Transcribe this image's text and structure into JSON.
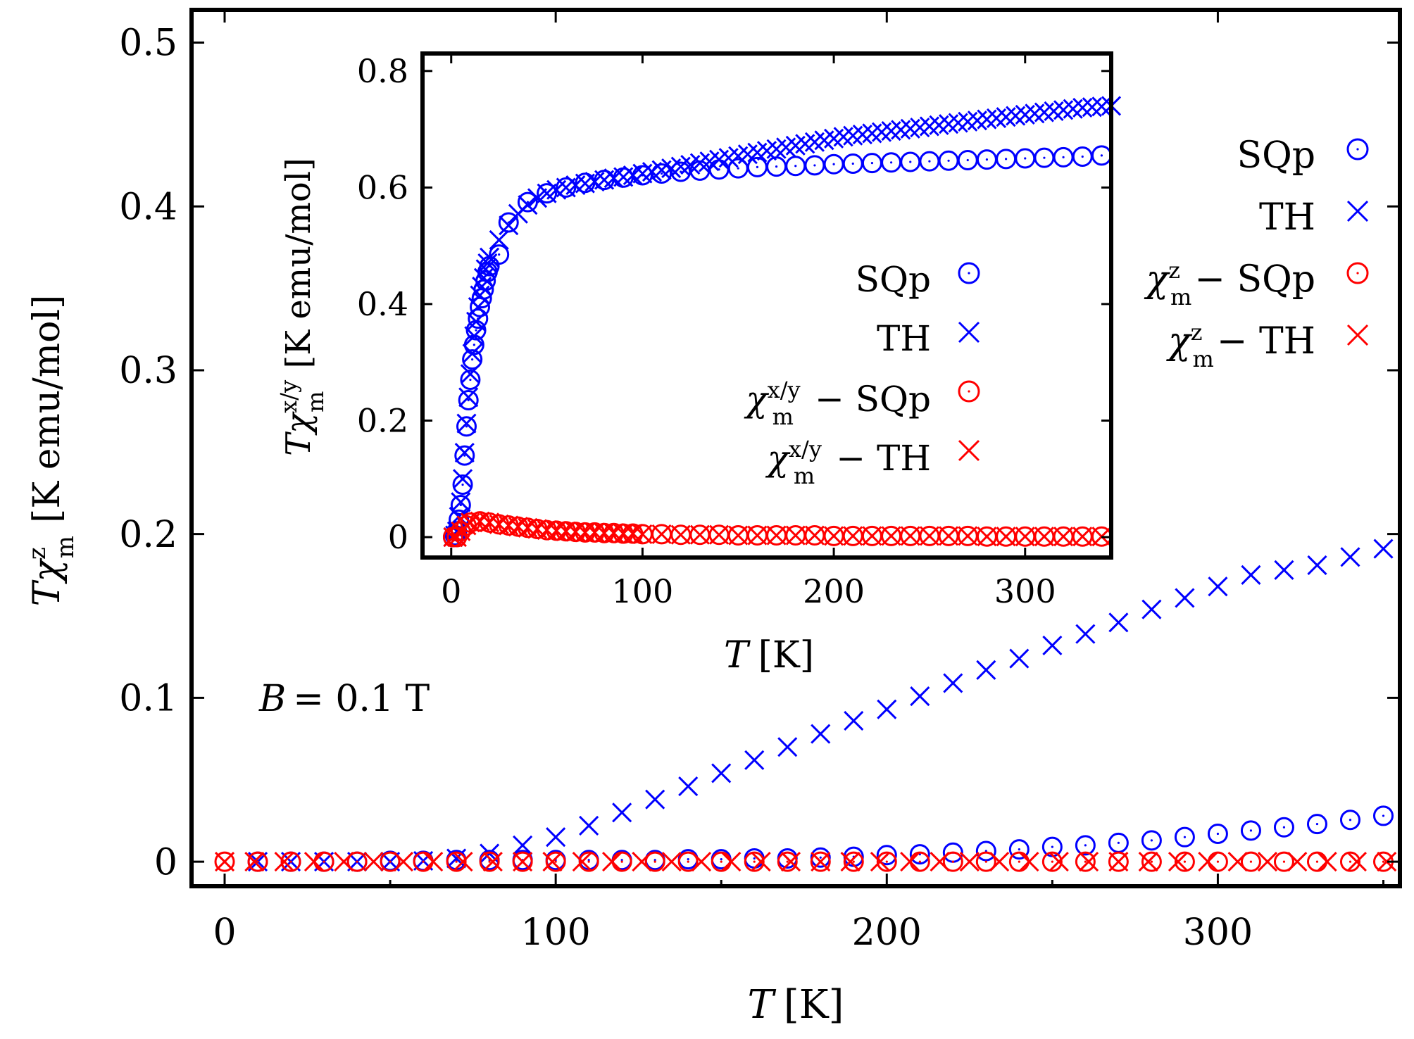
{
  "chart_data": [
    {
      "id": "main",
      "type": "scatter",
      "title": "",
      "xlabel": {
        "symbol": "T",
        "unit": "[K]"
      },
      "ylabel": {
        "symbol": "Tχ",
        "sup": "z",
        "sub": "m",
        "unit": "[K emu/mol]"
      },
      "xlim": [
        -10,
        355
      ],
      "ylim": [
        -0.015,
        0.52
      ],
      "xticks": [
        0,
        100,
        200,
        300
      ],
      "yticks": [
        0,
        0.1,
        0.2,
        0.3,
        0.4,
        0.5
      ],
      "xtick_labels": [
        "0",
        "100",
        "200",
        "300"
      ],
      "ytick_labels": [
        "0",
        "0.1",
        "0.2",
        "0.3",
        "0.4",
        "0.5"
      ],
      "annotation": {
        "symbol": "B",
        "text": "= 0.1 T"
      },
      "legend_position": "right",
      "series": [
        {
          "name": "SQp",
          "label": "SQp",
          "marker": "circle",
          "color": "#0000ff",
          "x": [
            10,
            20,
            30,
            40,
            50,
            60,
            70,
            80,
            90,
            100,
            110,
            120,
            130,
            140,
            150,
            160,
            170,
            180,
            190,
            200,
            210,
            220,
            230,
            240,
            250,
            260,
            270,
            280,
            290,
            300,
            310,
            320,
            330,
            340,
            350
          ],
          "y": [
            0,
            0,
            0,
            0,
            0.0005,
            0.0005,
            0.001,
            0.001,
            0.001,
            0.001,
            0.001,
            0.001,
            0.001,
            0.0015,
            0.0015,
            0.002,
            0.002,
            0.0025,
            0.003,
            0.004,
            0.0045,
            0.0055,
            0.0065,
            0.0075,
            0.009,
            0.01,
            0.0115,
            0.013,
            0.015,
            0.017,
            0.019,
            0.021,
            0.023,
            0.0255,
            0.028
          ]
        },
        {
          "name": "TH",
          "label": "TH",
          "marker": "cross",
          "color": "#0000ff",
          "x": [
            10,
            20,
            30,
            40,
            50,
            60,
            70,
            80,
            90,
            100,
            110,
            120,
            130,
            140,
            150,
            160,
            170,
            180,
            190,
            200,
            210,
            220,
            230,
            240,
            250,
            260,
            270,
            280,
            290,
            300,
            310,
            320,
            330,
            340,
            350
          ],
          "y": [
            0,
            0,
            0,
            0,
            0,
            0.0005,
            0.002,
            0.005,
            0.01,
            0.015,
            0.022,
            0.03,
            0.038,
            0.046,
            0.054,
            0.062,
            0.07,
            0.078,
            0.086,
            0.093,
            0.101,
            0.109,
            0.117,
            0.124,
            0.132,
            0.139,
            0.146,
            0.154,
            0.161,
            0.168,
            0.175,
            0.178,
            0.181,
            0.186,
            0.191
          ]
        },
        {
          "name": "chi_z_SQp",
          "label": "− SQp",
          "marker": "circle",
          "color": "#ff0000",
          "x": [
            0,
            10,
            20,
            30,
            40,
            50,
            60,
            70,
            80,
            90,
            100,
            110,
            120,
            130,
            140,
            150,
            160,
            170,
            180,
            190,
            200,
            210,
            220,
            230,
            240,
            250,
            260,
            270,
            280,
            290,
            300,
            310,
            320,
            330,
            340,
            350
          ],
          "y": [
            0,
            0,
            0,
            0,
            0,
            0,
            0,
            0,
            0,
            0,
            0,
            0,
            0,
            0,
            0,
            0,
            0,
            0,
            0,
            0,
            0,
            0,
            0,
            0,
            0,
            0,
            0,
            0,
            0,
            0,
            0,
            0,
            0,
            0,
            0,
            0
          ]
        },
        {
          "name": "chi_z_TH",
          "label": "− TH",
          "marker": "cross",
          "color": "#ff0000",
          "x": [
            0,
            9,
            18,
            27,
            36,
            45,
            54,
            63,
            72,
            81,
            90,
            99,
            108,
            117,
            126,
            135,
            144,
            153,
            162,
            171,
            180,
            189,
            198,
            207,
            216,
            225,
            234,
            243,
            252,
            261,
            270,
            279,
            288,
            297,
            306,
            315,
            324,
            333,
            342,
            351
          ],
          "y": [
            0,
            0,
            0,
            0,
            0,
            0,
            0,
            0,
            0,
            0,
            0,
            0,
            0,
            0,
            0,
            0,
            0,
            0,
            0,
            0,
            0,
            0,
            0,
            0,
            0,
            0,
            0,
            0,
            0,
            0,
            0,
            0,
            0,
            0,
            0,
            0,
            0,
            0,
            0,
            0
          ]
        }
      ],
      "legend_chi_labels": {
        "symbol": "χ",
        "sup": "z",
        "sub": "m"
      }
    },
    {
      "id": "inset",
      "type": "scatter",
      "title": "",
      "xlabel": {
        "symbol": "T",
        "unit": "[K]"
      },
      "ylabel": {
        "symbol": "Tχ",
        "sup": "x/y",
        "sub": "m",
        "unit": "[K emu/mol]"
      },
      "xlim": [
        -15,
        345
      ],
      "ylim": [
        -0.035,
        0.83
      ],
      "xticks": [
        0,
        100,
        200,
        300
      ],
      "yticks": [
        0,
        0.2,
        0.4,
        0.6,
        0.8
      ],
      "xtick_labels": [
        "0",
        "100",
        "200",
        "300"
      ],
      "ytick_labels": [
        "0",
        "0.2",
        "0.4",
        "0.6",
        "0.8"
      ],
      "legend_position": "lower-right",
      "series": [
        {
          "name": "SQp",
          "label": "SQp",
          "marker": "circle",
          "color": "#0000ff",
          "x": [
            1,
            2,
            3,
            4,
            5,
            6,
            7,
            8,
            9,
            10,
            11,
            12,
            13,
            14,
            15,
            16,
            17,
            18,
            19,
            20,
            25,
            30,
            40,
            50,
            60,
            70,
            80,
            90,
            100,
            110,
            120,
            130,
            140,
            150,
            160,
            170,
            180,
            190,
            200,
            210,
            220,
            230,
            240,
            250,
            260,
            270,
            280,
            290,
            300,
            310,
            320,
            330,
            340
          ],
          "y": [
            0,
            0.003,
            0.01,
            0.03,
            0.055,
            0.09,
            0.14,
            0.19,
            0.235,
            0.27,
            0.305,
            0.33,
            0.355,
            0.375,
            0.395,
            0.41,
            0.425,
            0.44,
            0.455,
            0.465,
            0.485,
            0.54,
            0.575,
            0.59,
            0.6,
            0.608,
            0.613,
            0.617,
            0.621,
            0.624,
            0.627,
            0.629,
            0.631,
            0.633,
            0.635,
            0.636,
            0.637,
            0.638,
            0.64,
            0.641,
            0.642,
            0.643,
            0.644,
            0.645,
            0.646,
            0.647,
            0.648,
            0.649,
            0.65,
            0.651,
            0.652,
            0.653,
            0.655
          ]
        },
        {
          "name": "TH",
          "label": "TH",
          "marker": "cross",
          "color": "#0000ff",
          "x": [
            1,
            2,
            3,
            4,
            5,
            6,
            7,
            8,
            9,
            10,
            11,
            12,
            13,
            14,
            15,
            16,
            17,
            18,
            19,
            20,
            25,
            30,
            35,
            40,
            45,
            50,
            55,
            60,
            65,
            70,
            75,
            80,
            85,
            90,
            95,
            100,
            105,
            110,
            115,
            120,
            125,
            130,
            135,
            140,
            145,
            150,
            155,
            160,
            165,
            170,
            175,
            180,
            185,
            190,
            195,
            200,
            205,
            210,
            215,
            220,
            225,
            230,
            235,
            240,
            245,
            250,
            255,
            260,
            265,
            270,
            275,
            280,
            285,
            290,
            295,
            300,
            305,
            310,
            315,
            320,
            325,
            330,
            335,
            340,
            345
          ],
          "y": [
            0,
            0.003,
            0.01,
            0.035,
            0.06,
            0.1,
            0.145,
            0.195,
            0.24,
            0.28,
            0.315,
            0.345,
            0.37,
            0.395,
            0.415,
            0.43,
            0.445,
            0.46,
            0.47,
            0.48,
            0.51,
            0.535,
            0.555,
            0.57,
            0.582,
            0.59,
            0.596,
            0.6,
            0.604,
            0.607,
            0.61,
            0.613,
            0.616,
            0.618,
            0.621,
            0.624,
            0.627,
            0.63,
            0.633,
            0.636,
            0.639,
            0.642,
            0.645,
            0.648,
            0.651,
            0.654,
            0.657,
            0.66,
            0.663,
            0.666,
            0.669,
            0.672,
            0.675,
            0.678,
            0.681,
            0.684,
            0.687,
            0.689,
            0.691,
            0.693,
            0.695,
            0.697,
            0.699,
            0.701,
            0.703,
            0.705,
            0.707,
            0.709,
            0.711,
            0.713,
            0.715,
            0.717,
            0.719,
            0.721,
            0.723,
            0.725,
            0.727,
            0.729,
            0.731,
            0.733,
            0.735,
            0.737,
            0.738,
            0.739,
            0.74
          ]
        },
        {
          "name": "chi_xy_SQp",
          "label": "− SQp",
          "marker": "circle",
          "color": "#ff0000",
          "x": [
            1,
            3,
            5,
            8,
            10,
            15,
            20,
            25,
            30,
            35,
            40,
            45,
            50,
            55,
            60,
            65,
            70,
            75,
            80,
            85,
            90,
            95,
            100,
            110,
            120,
            130,
            140,
            150,
            160,
            170,
            180,
            190,
            200,
            210,
            220,
            230,
            240,
            250,
            260,
            270,
            280,
            290,
            300,
            310,
            320,
            330,
            340
          ],
          "y": [
            0,
            0,
            0.01,
            0.02,
            0.025,
            0.027,
            0.025,
            0.022,
            0.02,
            0.018,
            0.016,
            0.014,
            0.012,
            0.011,
            0.01,
            0.009,
            0.008,
            0.008,
            0.007,
            0.007,
            0.006,
            0.006,
            0.005,
            0.005,
            0.004,
            0.004,
            0.004,
            0.003,
            0.003,
            0.003,
            0.003,
            0.003,
            0.002,
            0.002,
            0.002,
            0.002,
            0.002,
            0.002,
            0.002,
            0.002,
            0.001,
            0.001,
            0.001,
            0.001,
            0.001,
            0.001,
            0.001
          ]
        },
        {
          "name": "chi_xy_TH",
          "label": "− TH",
          "marker": "cross",
          "color": "#ff0000",
          "x": [
            1,
            3,
            5,
            8,
            10,
            15,
            20,
            25,
            30,
            35,
            40,
            45,
            50,
            55,
            60,
            65,
            70,
            75,
            80,
            85,
            90,
            95,
            100,
            110,
            120,
            130,
            140,
            150,
            160,
            170,
            180,
            190,
            200,
            210,
            220,
            230,
            240,
            250,
            260,
            270,
            280,
            290,
            300,
            310,
            320,
            330,
            340
          ],
          "y": [
            0,
            0,
            0.01,
            0.02,
            0.025,
            0.027,
            0.025,
            0.022,
            0.02,
            0.018,
            0.016,
            0.014,
            0.012,
            0.011,
            0.01,
            0.009,
            0.008,
            0.008,
            0.007,
            0.007,
            0.006,
            0.006,
            0.005,
            0.005,
            0.004,
            0.004,
            0.004,
            0.003,
            0.003,
            0.003,
            0.003,
            0.003,
            0.002,
            0.002,
            0.002,
            0.002,
            0.002,
            0.002,
            0.002,
            0.002,
            0.001,
            0.001,
            0.001,
            0.001,
            0.001,
            0.001,
            0.001
          ]
        }
      ],
      "legend_chi_labels": {
        "symbol": "χ",
        "sup": "x/y",
        "sub": "m"
      }
    }
  ]
}
